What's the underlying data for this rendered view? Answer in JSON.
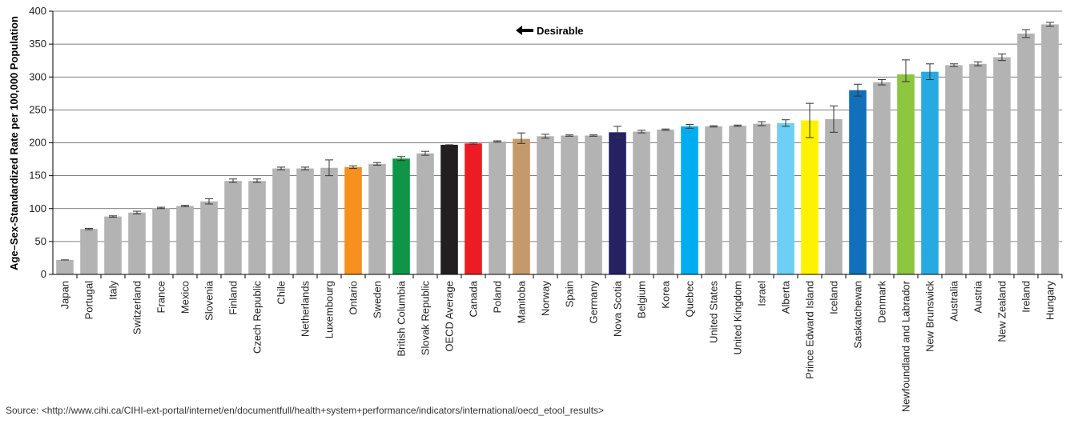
{
  "source_text": "Source: <http://www.cihi.ca/CIHI-ext-portal/internet/en/documentfull/health+system+performance/indicators/international/oecd_etool_results>",
  "chart_data": {
    "type": "bar",
    "title": "",
    "xlabel": "",
    "ylabel": "Age–Sex-Standardized Rate per 100,000 Population",
    "ylim": [
      0,
      400
    ],
    "yticks": [
      0,
      50,
      100,
      150,
      200,
      250,
      300,
      350,
      400
    ],
    "grid": true,
    "legend": "none",
    "annotation": "Desirable",
    "categories": [
      "Japan",
      "Portugal",
      "Italy",
      "Switzerland",
      "France",
      "Mexico",
      "Slovenia",
      "Finland",
      "Czech Republic",
      "Chile",
      "Netherlands",
      "Luxembourg",
      "Ontario",
      "Sweden",
      "British Columbia",
      "Slovak Republic",
      "OECD Average",
      "Canada",
      "Poland",
      "Manitoba",
      "Norway",
      "Spain",
      "Germany",
      "Nova Scotia",
      "Belgium",
      "Korea",
      "Quebec",
      "United States",
      "United Kingdom",
      "Israel",
      "Alberta",
      "Prince Edward Island",
      "Iceland",
      "Saskatchewan",
      "Denmark",
      "Newfoundland and Labrador",
      "New Brunswick",
      "Australia",
      "Austria",
      "New Zealand",
      "Ireland",
      "Hungary"
    ],
    "values": [
      22,
      69,
      88,
      94,
      101,
      104,
      111,
      142,
      142,
      161,
      161,
      162,
      163,
      168,
      176,
      184,
      197,
      199,
      202,
      206,
      210,
      211,
      211,
      216,
      217,
      220,
      225,
      225,
      226,
      229,
      230,
      234,
      236,
      280,
      292,
      304,
      308,
      318,
      320,
      330,
      366,
      380
    ],
    "error_low": [
      22,
      68,
      87,
      92,
      100,
      103,
      107,
      140,
      140,
      159,
      159,
      150,
      161,
      166,
      173,
      181,
      197,
      198,
      201,
      199,
      207,
      210,
      210,
      208,
      215,
      219,
      222,
      224,
      225,
      226,
      225,
      208,
      216,
      271,
      288,
      293,
      296,
      316,
      317,
      325,
      360,
      377
    ],
    "error_high": [
      22,
      70,
      89,
      96,
      102,
      105,
      115,
      145,
      145,
      163,
      163,
      174,
      165,
      170,
      179,
      187,
      197,
      200,
      203,
      215,
      213,
      212,
      212,
      225,
      219,
      221,
      228,
      226,
      227,
      232,
      235,
      260,
      256,
      289,
      296,
      326,
      320,
      320,
      323,
      335,
      372,
      383
    ],
    "colors": [
      "#b3b3b3",
      "#b3b3b3",
      "#b3b3b3",
      "#b3b3b3",
      "#b3b3b3",
      "#b3b3b3",
      "#b3b3b3",
      "#b3b3b3",
      "#b3b3b3",
      "#b3b3b3",
      "#b3b3b3",
      "#b3b3b3",
      "#f7901e",
      "#b3b3b3",
      "#0f9547",
      "#b3b3b3",
      "#231f20",
      "#ed1c24",
      "#b3b3b3",
      "#c49a6c",
      "#b3b3b3",
      "#b3b3b3",
      "#b3b3b3",
      "#262262",
      "#b3b3b3",
      "#b3b3b3",
      "#00aeef",
      "#b3b3b3",
      "#b3b3b3",
      "#b3b3b3",
      "#6dcff6",
      "#fff200",
      "#b3b3b3",
      "#1170b9",
      "#b3b3b3",
      "#8dc63f",
      "#27aae1",
      "#b3b3b3",
      "#b3b3b3",
      "#b3b3b3",
      "#b3b3b3",
      "#b3b3b3"
    ]
  }
}
